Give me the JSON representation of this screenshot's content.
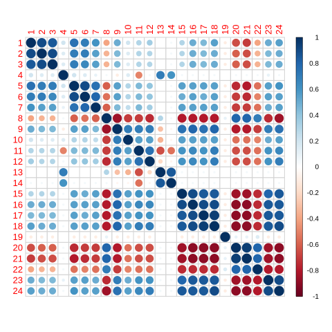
{
  "chart_data": {
    "type": "heatmap",
    "method": "circle",
    "labels": [
      "1",
      "2",
      "3",
      "4",
      "5",
      "6",
      "7",
      "8",
      "9",
      "10",
      "11",
      "12",
      "13",
      "14",
      "15",
      "16",
      "17",
      "18",
      "19",
      "20",
      "21",
      "22",
      "23",
      "24"
    ],
    "label_color": "#ff0000",
    "grid": true,
    "legend": {
      "placement": "right",
      "range": [
        -1,
        1
      ],
      "ticks": [
        "1",
        "0.8",
        "0.6",
        "0.4",
        "0.2",
        "0",
        "-0.2",
        "-0.4",
        "-0.6",
        "-0.8",
        "-1"
      ],
      "tick_values": [
        1,
        0.8,
        0.6,
        0.4,
        0.2,
        0,
        -0.2,
        -0.4,
        -0.6,
        -0.8,
        -1
      ]
    },
    "colors": [
      "#67001f",
      "#b2182b",
      "#d6604d",
      "#f4a582",
      "#fddbc7",
      "#ffffff",
      "#d1e5f0",
      "#92c5de",
      "#4393c3",
      "#2166ac",
      "#053061"
    ],
    "matrix": [
      [
        1.0,
        0.9,
        0.85,
        0.2,
        0.75,
        0.7,
        0.6,
        -0.4,
        0.5,
        0.2,
        0.3,
        0.35,
        0.0,
        0.05,
        0.3,
        0.5,
        0.45,
        0.55,
        -0.1,
        -0.65,
        -0.7,
        -0.4,
        0.5,
        0.55
      ],
      [
        0.9,
        1.0,
        0.9,
        0.15,
        0.7,
        0.7,
        0.55,
        -0.35,
        0.45,
        0.15,
        0.3,
        0.3,
        0.0,
        0.05,
        0.3,
        0.5,
        0.45,
        0.5,
        -0.1,
        -0.6,
        -0.65,
        -0.35,
        0.45,
        0.5
      ],
      [
        0.85,
        0.9,
        1.0,
        0.15,
        0.7,
        0.65,
        0.55,
        -0.35,
        0.45,
        0.15,
        0.3,
        0.3,
        0.0,
        0.05,
        0.3,
        0.5,
        0.45,
        0.5,
        -0.1,
        -0.6,
        -0.65,
        -0.35,
        0.45,
        0.5
      ],
      [
        0.2,
        0.15,
        0.15,
        1.0,
        0.2,
        0.15,
        0.1,
        0.05,
        -0.1,
        0.15,
        -0.5,
        0.05,
        0.7,
        0.6,
        0.05,
        0.05,
        0.05,
        0.05,
        0.0,
        0.05,
        0.05,
        0.05,
        0.1,
        0.05
      ],
      [
        0.75,
        0.7,
        0.7,
        0.2,
        1.0,
        0.9,
        0.75,
        -0.6,
        0.55,
        0.3,
        0.45,
        0.4,
        0.0,
        0.05,
        0.55,
        0.55,
        0.55,
        0.55,
        -0.1,
        -0.75,
        -0.8,
        -0.55,
        0.55,
        0.6
      ],
      [
        0.7,
        0.7,
        0.65,
        0.15,
        0.9,
        1.0,
        0.8,
        -0.55,
        0.55,
        0.3,
        0.45,
        0.4,
        0.0,
        0.05,
        0.5,
        0.55,
        0.5,
        0.55,
        -0.1,
        -0.7,
        -0.75,
        -0.5,
        0.55,
        0.55
      ],
      [
        0.6,
        0.55,
        0.55,
        0.1,
        0.75,
        0.8,
        1.0,
        -0.6,
        0.45,
        0.25,
        0.45,
        0.35,
        0.0,
        0.05,
        0.55,
        0.55,
        0.55,
        0.55,
        -0.1,
        -0.7,
        -0.7,
        -0.55,
        0.5,
        0.55
      ],
      [
        -0.4,
        -0.35,
        -0.35,
        0.05,
        -0.6,
        -0.55,
        -0.6,
        1.0,
        -0.85,
        -0.7,
        -0.7,
        -0.75,
        0.3,
        0.05,
        -0.8,
        -0.8,
        -0.8,
        -0.8,
        0.1,
        0.8,
        0.8,
        0.7,
        -0.75,
        -0.85
      ],
      [
        0.5,
        0.45,
        0.45,
        -0.1,
        0.55,
        0.55,
        0.45,
        -0.85,
        1.0,
        0.7,
        0.7,
        0.7,
        -0.3,
        -0.05,
        0.75,
        0.8,
        0.75,
        0.8,
        -0.1,
        -0.8,
        -0.8,
        -0.7,
        0.7,
        0.75
      ],
      [
        0.2,
        0.15,
        0.15,
        0.15,
        0.3,
        0.3,
        0.25,
        -0.7,
        0.7,
        1.0,
        0.55,
        0.55,
        -0.35,
        -0.05,
        0.55,
        0.55,
        0.55,
        0.55,
        -0.1,
        -0.55,
        -0.55,
        -0.5,
        0.5,
        0.55
      ],
      [
        0.3,
        0.3,
        0.3,
        -0.5,
        0.45,
        0.45,
        0.45,
        -0.7,
        0.7,
        0.55,
        1.0,
        0.75,
        -0.65,
        -0.55,
        0.6,
        0.65,
        0.6,
        0.7,
        -0.1,
        -0.65,
        -0.65,
        -0.55,
        0.6,
        0.65
      ],
      [
        0.35,
        0.3,
        0.3,
        0.05,
        0.4,
        0.4,
        0.35,
        -0.75,
        0.7,
        0.55,
        0.75,
        1.0,
        -0.2,
        -0.05,
        0.6,
        0.65,
        0.6,
        0.7,
        -0.1,
        -0.65,
        -0.65,
        -0.55,
        0.6,
        0.7
      ],
      [
        0.0,
        0.0,
        0.0,
        0.7,
        0.0,
        0.0,
        0.0,
        0.3,
        -0.3,
        -0.35,
        -0.65,
        -0.2,
        1.0,
        0.85,
        0.05,
        0.05,
        0.05,
        0.05,
        0.0,
        0.05,
        0.05,
        0.05,
        0.05,
        0.05
      ],
      [
        0.05,
        0.05,
        0.05,
        0.6,
        0.05,
        0.05,
        0.05,
        0.05,
        -0.05,
        -0.05,
        -0.55,
        -0.05,
        0.85,
        1.0,
        0.05,
        0.05,
        0.05,
        0.05,
        0.0,
        0.05,
        0.05,
        0.05,
        0.05,
        0.05
      ],
      [
        0.3,
        0.3,
        0.3,
        0.05,
        0.55,
        0.5,
        0.55,
        -0.8,
        0.75,
        0.55,
        0.6,
        0.6,
        0.05,
        0.05,
        1.0,
        0.9,
        0.85,
        0.85,
        -0.1,
        -0.85,
        -0.85,
        -0.75,
        0.8,
        0.85
      ],
      [
        0.5,
        0.5,
        0.5,
        0.05,
        0.55,
        0.55,
        0.55,
        -0.8,
        0.8,
        0.55,
        0.65,
        0.65,
        0.05,
        0.05,
        0.9,
        1.0,
        0.9,
        0.9,
        -0.1,
        -0.9,
        -0.9,
        -0.75,
        0.85,
        0.85
      ],
      [
        0.45,
        0.45,
        0.45,
        0.05,
        0.55,
        0.5,
        0.55,
        -0.8,
        0.75,
        0.55,
        0.6,
        0.6,
        0.05,
        0.05,
        0.85,
        0.9,
        1.0,
        0.95,
        -0.1,
        -0.9,
        -0.9,
        -0.75,
        0.85,
        0.85
      ],
      [
        0.55,
        0.5,
        0.5,
        0.05,
        0.55,
        0.55,
        0.55,
        -0.8,
        0.8,
        0.55,
        0.7,
        0.7,
        0.05,
        0.05,
        0.85,
        0.9,
        0.95,
        1.0,
        -0.1,
        -0.9,
        -0.9,
        -0.75,
        0.85,
        0.9
      ],
      [
        -0.1,
        -0.1,
        -0.1,
        0.0,
        -0.1,
        -0.1,
        -0.1,
        0.1,
        -0.1,
        -0.1,
        -0.1,
        -0.1,
        0.0,
        0.0,
        -0.1,
        -0.1,
        -0.1,
        -0.1,
        1.0,
        0.1,
        0.1,
        0.15,
        -0.1,
        -0.1
      ],
      [
        -0.65,
        -0.6,
        -0.6,
        0.05,
        -0.75,
        -0.7,
        -0.7,
        0.8,
        -0.8,
        -0.55,
        -0.65,
        -0.65,
        0.05,
        0.05,
        -0.85,
        -0.9,
        -0.9,
        -0.9,
        0.1,
        1.0,
        0.95,
        0.8,
        -0.85,
        -0.9
      ],
      [
        -0.7,
        -0.65,
        -0.65,
        0.05,
        -0.8,
        -0.75,
        -0.7,
        0.8,
        -0.8,
        -0.55,
        -0.65,
        -0.65,
        0.05,
        0.05,
        -0.85,
        -0.9,
        -0.9,
        -0.9,
        0.1,
        0.95,
        1.0,
        0.8,
        -0.85,
        -0.9
      ],
      [
        -0.4,
        -0.35,
        -0.35,
        0.05,
        -0.55,
        -0.5,
        -0.55,
        0.7,
        -0.7,
        -0.5,
        -0.55,
        -0.55,
        0.05,
        0.05,
        -0.75,
        -0.75,
        -0.75,
        -0.75,
        0.15,
        0.8,
        0.8,
        1.0,
        -0.8,
        -0.8
      ],
      [
        0.5,
        0.45,
        0.45,
        0.1,
        0.55,
        0.55,
        0.5,
        -0.75,
        0.7,
        0.5,
        0.6,
        0.6,
        0.05,
        0.05,
        0.8,
        0.85,
        0.85,
        0.85,
        -0.1,
        -0.85,
        -0.85,
        -0.8,
        1.0,
        0.9
      ],
      [
        0.55,
        0.5,
        0.5,
        0.05,
        0.6,
        0.55,
        0.55,
        -0.85,
        0.75,
        0.55,
        0.65,
        0.7,
        0.05,
        0.05,
        0.85,
        0.85,
        0.85,
        0.9,
        -0.1,
        -0.9,
        -0.9,
        -0.8,
        0.9,
        1.0
      ]
    ]
  }
}
